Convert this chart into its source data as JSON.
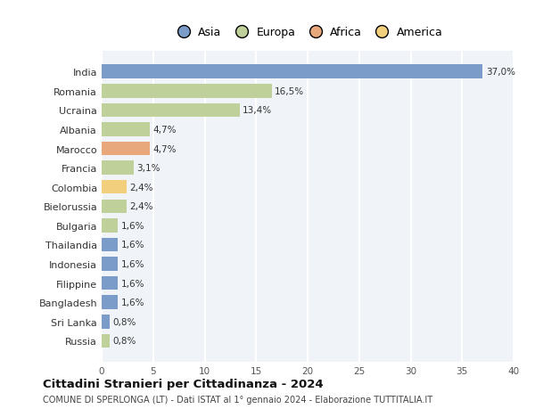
{
  "countries": [
    "India",
    "Romania",
    "Ucraina",
    "Albania",
    "Marocco",
    "Francia",
    "Colombia",
    "Bielorussia",
    "Bulgaria",
    "Thailandia",
    "Indonesia",
    "Filippine",
    "Bangladesh",
    "Sri Lanka",
    "Russia"
  ],
  "values": [
    37.0,
    16.5,
    13.4,
    4.7,
    4.7,
    3.1,
    2.4,
    2.4,
    1.6,
    1.6,
    1.6,
    1.6,
    1.6,
    0.8,
    0.8
  ],
  "labels": [
    "37,0%",
    "16,5%",
    "13,4%",
    "4,7%",
    "4,7%",
    "3,1%",
    "2,4%",
    "2,4%",
    "1,6%",
    "1,6%",
    "1,6%",
    "1,6%",
    "1,6%",
    "0,8%",
    "0,8%"
  ],
  "colors": [
    "#7b9cc9",
    "#c0d09a",
    "#c0d09a",
    "#c0d09a",
    "#e8a87c",
    "#c0d09a",
    "#f2cf7c",
    "#c0d09a",
    "#c0d09a",
    "#7b9cc9",
    "#7b9cc9",
    "#7b9cc9",
    "#7b9cc9",
    "#7b9cc9",
    "#c0d09a"
  ],
  "legend_labels": [
    "Asia",
    "Europa",
    "Africa",
    "America"
  ],
  "legend_colors": [
    "#7b9cc9",
    "#c0d09a",
    "#e8a87c",
    "#f2cf7c"
  ],
  "title": "Cittadini Stranieri per Cittadinanza - 2024",
  "subtitle": "COMUNE DI SPERLONGA (LT) - Dati ISTAT al 1° gennaio 2024 - Elaborazione TUTTITALIA.IT",
  "xlim": [
    0,
    40
  ],
  "xticks": [
    0,
    5,
    10,
    15,
    20,
    25,
    30,
    35,
    40
  ],
  "bg_color": "#ffffff",
  "plot_bg_color": "#f0f4f8",
  "grid_color": "#ffffff",
  "bar_height": 0.72
}
